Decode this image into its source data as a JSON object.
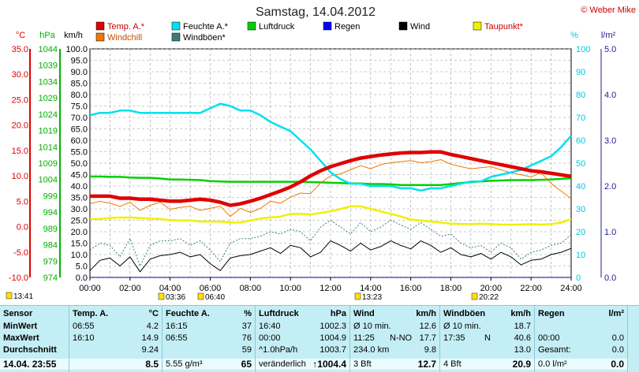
{
  "page": {
    "title": "Samstag, 14.04.2012",
    "credit": "© Weber Mike"
  },
  "chart_data": {
    "type": "line",
    "title": "Samstag, 14.04.2012",
    "x": [
      "00:00",
      "00:30",
      "01:00",
      "01:30",
      "02:00",
      "02:30",
      "03:00",
      "03:30",
      "04:00",
      "04:30",
      "05:00",
      "05:30",
      "06:00",
      "06:30",
      "07:00",
      "07:30",
      "08:00",
      "08:30",
      "09:00",
      "09:30",
      "10:00",
      "10:30",
      "11:00",
      "11:30",
      "12:00",
      "12:30",
      "13:00",
      "13:30",
      "14:00",
      "14:30",
      "15:00",
      "15:30",
      "16:00",
      "16:30",
      "17:00",
      "17:30",
      "18:00",
      "18:30",
      "19:00",
      "19:30",
      "20:00",
      "20:30",
      "21:00",
      "21:30",
      "22:00",
      "22:30",
      "23:00",
      "23:30",
      "24:00"
    ],
    "xlim": [
      "00:00",
      "24:00"
    ],
    "x_ticks": [
      "00:00",
      "02:00",
      "04:00",
      "06:00",
      "08:00",
      "10:00",
      "12:00",
      "14:00",
      "16:00",
      "18:00",
      "20:00",
      "22:00",
      "24:00"
    ],
    "axes": [
      {
        "label": "°C",
        "min": -10.0,
        "max": 35.0,
        "ticks": [
          "35.0",
          "30.0",
          "25.0",
          "20.0",
          "15.0",
          "10.0",
          "5.0",
          "0.0",
          "-5.0",
          "-10.0"
        ],
        "color": "#e00000"
      },
      {
        "label": "hPa",
        "min": 974,
        "max": 1044,
        "ticks": [
          "1044",
          "1039",
          "1034",
          "1029",
          "1024",
          "1019",
          "1014",
          "1009",
          "1004",
          "999",
          "994",
          "989",
          "984",
          "979",
          "974"
        ],
        "color": "#00b000"
      },
      {
        "label": "km/h",
        "min": 0.0,
        "max": 100.0,
        "ticks": [
          "100.0",
          "95.0",
          "90.0",
          "85.0",
          "80.0",
          "75.0",
          "70.0",
          "65.0",
          "60.0",
          "55.0",
          "50.0",
          "45.0",
          "40.0",
          "35.0",
          "30.0",
          "25.0",
          "20.0",
          "15.0",
          "10.0",
          "5.0",
          "0.0"
        ],
        "color": "#000000"
      },
      {
        "label": "%",
        "min": 0,
        "max": 100,
        "ticks": [
          "100",
          "90",
          "80",
          "70",
          "60",
          "50",
          "40",
          "30",
          "20",
          "10",
          "0"
        ],
        "color": "#00c8e0"
      },
      {
        "label": "l/m²",
        "min": 0.0,
        "max": 5.0,
        "ticks": [
          "5.0",
          "4.0",
          "3.0",
          "2.0",
          "1.0",
          "0.0"
        ],
        "color": "#1c1c9c"
      }
    ],
    "grid": true,
    "legend_position": "top",
    "series": [
      {
        "name": "Temp. A.*",
        "axis": "°C",
        "color": "#e00000",
        "values": [
          6.0,
          6.0,
          6.0,
          5.6,
          5.6,
          5.4,
          5.4,
          5.2,
          5.0,
          5.0,
          5.2,
          5.4,
          5.2,
          4.8,
          4.2,
          4.5,
          5.0,
          5.6,
          6.3,
          7.0,
          7.8,
          8.8,
          10.0,
          11.0,
          11.8,
          12.4,
          13.0,
          13.5,
          13.8,
          14.1,
          14.3,
          14.5,
          14.6,
          14.6,
          14.7,
          14.7,
          14.2,
          13.8,
          13.4,
          13.0,
          12.6,
          12.2,
          11.8,
          11.4,
          11.0,
          10.8,
          10.5,
          10.2,
          9.9
        ]
      },
      {
        "name": "Feuchte A.*",
        "axis": "%",
        "color": "#00e0ee",
        "values": [
          71,
          72,
          72,
          73,
          73,
          72,
          72,
          72,
          72,
          72,
          72,
          72,
          74,
          76,
          75,
          73,
          73,
          71,
          68,
          66,
          64,
          60,
          56,
          51,
          46,
          43,
          41,
          41,
          40,
          40,
          40,
          39,
          39,
          38,
          39,
          39,
          40,
          41,
          42,
          42,
          44,
          45,
          46,
          47,
          49,
          51,
          53,
          57,
          62
        ]
      },
      {
        "name": "Luftdruck",
        "axis": "hPa",
        "color": "#00d000",
        "values": [
          1004.9,
          1004.9,
          1004.8,
          1004.8,
          1004.6,
          1004.5,
          1004.5,
          1004.3,
          1004.0,
          1004.0,
          1003.9,
          1003.8,
          1003.5,
          1003.4,
          1003.3,
          1003.3,
          1003.3,
          1003.3,
          1003.3,
          1003.3,
          1003.3,
          1003.3,
          1003.2,
          1003.1,
          1003.0,
          1002.9,
          1002.8,
          1002.8,
          1002.6,
          1002.6,
          1002.5,
          1002.3,
          1002.3,
          1002.3,
          1002.3,
          1002.3,
          1002.6,
          1002.9,
          1003.2,
          1003.4,
          1003.6,
          1003.7,
          1003.8,
          1003.8,
          1003.8,
          1003.9,
          1004.0,
          1004.2,
          1004.4
        ]
      },
      {
        "name": "Regen",
        "axis": "l/m²",
        "color": "#0000ff",
        "values": [
          0.0,
          0.0,
          0.0,
          0.0,
          0.0,
          0.0,
          0.0,
          0.0,
          0.0,
          0.0,
          0.0,
          0.0,
          0.0,
          0.0,
          0.0,
          0.0,
          0.0,
          0.0,
          0.0,
          0.0,
          0.0,
          0.0,
          0.0,
          0.0,
          0.0,
          0.0,
          0.0,
          0.0,
          0.0,
          0.0,
          0.0,
          0.0,
          0.0,
          0.0,
          0.0,
          0.0,
          0.0,
          0.0,
          0.0,
          0.0,
          0.0,
          0.0,
          0.0,
          0.0,
          0.0,
          0.0,
          0.0,
          0.0,
          0.0
        ]
      },
      {
        "name": "Wind",
        "axis": "km/h",
        "color": "#000000",
        "values": [
          3.0,
          7.5,
          8.5,
          5.0,
          9.0,
          2.5,
          8.0,
          9.5,
          10.0,
          11.0,
          9.0,
          10.0,
          6.0,
          3.0,
          8.5,
          9.5,
          10.0,
          11.5,
          13.0,
          10.5,
          14.0,
          13.0,
          9.0,
          11.0,
          16.0,
          14.0,
          11.5,
          15.0,
          12.0,
          13.5,
          16.0,
          14.0,
          12.5,
          16.0,
          14.0,
          11.0,
          13.0,
          10.0,
          9.0,
          10.5,
          8.0,
          11.0,
          9.0,
          5.5,
          7.5,
          8.0,
          10.0,
          11.0,
          12.7
        ]
      },
      {
        "name": "Taupunkt*",
        "axis": "°C",
        "color": "#f0f000",
        "values": [
          1.5,
          1.5,
          1.7,
          1.8,
          1.8,
          1.7,
          1.6,
          1.5,
          1.3,
          1.2,
          1.2,
          1.0,
          1.0,
          1.0,
          0.8,
          0.8,
          1.2,
          1.6,
          1.8,
          2.0,
          2.5,
          2.5,
          2.4,
          2.7,
          3.0,
          3.5,
          4.0,
          4.0,
          3.5,
          3.0,
          2.5,
          2.0,
          1.4,
          1.2,
          1.0,
          0.8,
          0.6,
          0.5,
          0.5,
          0.6,
          0.5,
          0.4,
          0.4,
          0.4,
          0.5,
          0.4,
          0.5,
          0.8,
          1.5
        ]
      },
      {
        "name": "Windchill",
        "axis": "°C",
        "color": "#f07800",
        "values": [
          4.5,
          5.0,
          4.6,
          4.0,
          4.8,
          3.2,
          4.2,
          4.8,
          3.4,
          3.8,
          4.0,
          3.2,
          3.6,
          4.0,
          2.0,
          3.6,
          2.8,
          3.6,
          5.0,
          4.6,
          5.8,
          6.6,
          6.5,
          8.6,
          10.0,
          10.4,
          11.2,
          12.0,
          11.4,
          12.2,
          12.6,
          12.8,
          13.0,
          12.6,
          12.8,
          13.2,
          12.3,
          11.8,
          11.4,
          11.6,
          11.8,
          11.2,
          10.6,
          10.2,
          9.8,
          10.6,
          8.5,
          7.0,
          5.5
        ]
      },
      {
        "name": "Windböen*",
        "axis": "km/h",
        "color": "#3a7d7d",
        "values": [
          12.0,
          15.0,
          14.0,
          9.0,
          17.0,
          5.0,
          14.0,
          16.0,
          16.0,
          17.0,
          14.0,
          16.0,
          12.0,
          7.0,
          15.0,
          17.0,
          17.0,
          18.0,
          20.0,
          19.0,
          21.0,
          20.0,
          16.0,
          22.0,
          25.0,
          22.0,
          19.0,
          24.0,
          20.0,
          22.0,
          25.0,
          23.0,
          21.0,
          24.0,
          21.0,
          18.0,
          19.0,
          15.0,
          13.0,
          14.0,
          11.0,
          15.0,
          13.0,
          8.0,
          11.0,
          12.0,
          14.0,
          15.0,
          18.7
        ]
      }
    ],
    "bottom_markers": [
      {
        "time": "13:41",
        "offset_left": true
      },
      {
        "time": "03:36"
      },
      {
        "time": "06:40"
      },
      {
        "time": "13:23"
      },
      {
        "time": "20:22"
      }
    ]
  },
  "legend_row1": [
    "Temp. A.*",
    "Feuchte A.*",
    "Luftdruck",
    "Regen",
    "Wind",
    "Taupunkt*"
  ],
  "legend_row2": [
    "Windchill",
    "Windböen*"
  ],
  "stats": {
    "sensor": {
      "h": "Sensor",
      "min": "MinWert",
      "max": "MaxWert",
      "avg": "Durchschnitt",
      "now": "14.04.  23:55"
    },
    "temp": {
      "h": "Temp. A.",
      "u": "°C",
      "min_t": "06:55",
      "min_v": "4.2",
      "max_t": "16:10",
      "max_v": "14.9",
      "avg_v": "9.24",
      "now_v": "8.5"
    },
    "hum": {
      "h": "Feuchte A.",
      "u": "%",
      "min_t": "16:15",
      "min_v": "37",
      "max_t": "06:55",
      "max_v": "76",
      "avg_v": "59",
      "now_pre": "5.55 g/m³",
      "now_v": "65"
    },
    "press": {
      "h": "Luftdruck",
      "u": "hPa",
      "min_t": "16:40",
      "min_v": "1002.3",
      "max_t": "00:00",
      "max_v": "1004.9",
      "avg_t": "^1.0hPa/h",
      "avg_v": "1003.7",
      "now_t": "veränderlich",
      "now_v": "↑1004.4"
    },
    "wind": {
      "h": "Wind",
      "u": "km/h",
      "r1_t": "Ø 10 min.",
      "r1_v": "12.6",
      "r2_t": "11:25",
      "r2_m": "N-NO",
      "r2_v": "17.7",
      "r3_t": "234.0 km",
      "r3_v": "9.8",
      "r4_t": "3 Bft",
      "r4_v": "12.7"
    },
    "gust": {
      "h": "Windböen",
      "u": "km/h",
      "r1_t": "Ø 10 min.",
      "r1_v": "18.7",
      "r2_t": "17:35",
      "r2_m": "N",
      "r2_v": "40.6",
      "r3_v": "13.0",
      "r4_t": "4 Bft",
      "r4_v": "20.9"
    },
    "rain": {
      "h": "Regen",
      "u": "l/m²",
      "r2_t": "00:00",
      "r2_v": "0.0",
      "r3_t": "Gesamt:",
      "r3_v": "0.0",
      "r4_t": "0.0 l/m²",
      "r4_v": "0.0"
    }
  }
}
